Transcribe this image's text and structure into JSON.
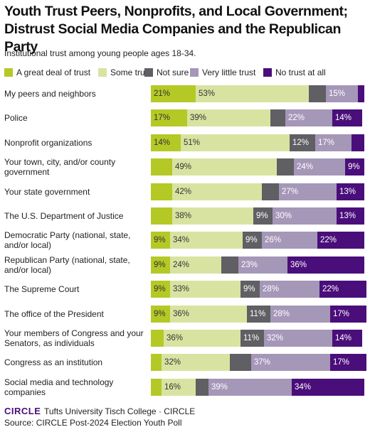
{
  "chart_data": {
    "type": "stacked-bar-horizontal",
    "title": "Youth Trust Peers, Nonprofits, and Local Government; Distrust Social Media Companies and the Republican Party",
    "subtitle": "Institutional trust among young people ages 18-34.",
    "categories": [
      "My peers and neighbors",
      "Police",
      "Nonprofit organizations",
      "Your town, city, and/or county government",
      "Your state government",
      "The U.S. Department of Justice",
      "Democratic Party (national, state, and/or local)",
      "Republican Party (national, state, and/or local)",
      "The Supreme Court",
      "The office of the President",
      "Your members of Congress and your Senators, as individuals",
      "Congress as an institution",
      "Social media and technology companies"
    ],
    "series": [
      {
        "name": "A great deal of trust",
        "color": "#b5c926",
        "values": [
          21,
          17,
          14,
          10,
          10,
          10,
          9,
          9,
          9,
          9,
          6,
          5,
          5
        ],
        "value_labels": [
          "21%",
          "17%",
          "14%",
          null,
          null,
          null,
          "9%",
          "9%",
          "9%",
          "9%",
          null,
          null,
          null
        ]
      },
      {
        "name": "Some trust",
        "color": "#d9e3a1",
        "values": [
          53,
          39,
          51,
          49,
          42,
          38,
          34,
          24,
          33,
          36,
          36,
          32,
          16
        ],
        "value_labels": [
          "53%",
          "39%",
          "51%",
          "49%",
          "42%",
          "38%",
          "34%",
          "24%",
          "33%",
          "36%",
          "36%",
          "32%",
          "16%"
        ]
      },
      {
        "name": "Not sure",
        "color": "#5f5f64",
        "values": [
          8,
          7,
          12,
          8,
          8,
          9,
          9,
          8,
          9,
          11,
          11,
          10,
          6
        ],
        "value_labels": [
          null,
          null,
          "12%",
          null,
          null,
          "9%",
          "9%",
          null,
          "9%",
          "11%",
          "11%",
          null,
          null
        ]
      },
      {
        "name": "Very little trust",
        "color": "#a597b8",
        "values": [
          15,
          22,
          17,
          24,
          27,
          30,
          26,
          23,
          28,
          28,
          32,
          37,
          39
        ],
        "value_labels": [
          "15%",
          "22%",
          "17%",
          "24%",
          "27%",
          "30%",
          "26%",
          "23%",
          "28%",
          "28%",
          "32%",
          "37%",
          "39%"
        ]
      },
      {
        "name": "No trust at all",
        "color": "#4a0e7a",
        "values": [
          3,
          14,
          6,
          9,
          13,
          13,
          22,
          36,
          22,
          17,
          14,
          17,
          34
        ],
        "value_labels": [
          null,
          "14%",
          null,
          "9%",
          "13%",
          "13%",
          "22%",
          "36%",
          "22%",
          "17%",
          "14%",
          "17%",
          "34%"
        ]
      }
    ],
    "logo": "CIRCLE",
    "footer": "Tufts University Tisch College · CIRCLE",
    "source": "Source: CIRCLE Post-2024 Election Youth Poll"
  }
}
